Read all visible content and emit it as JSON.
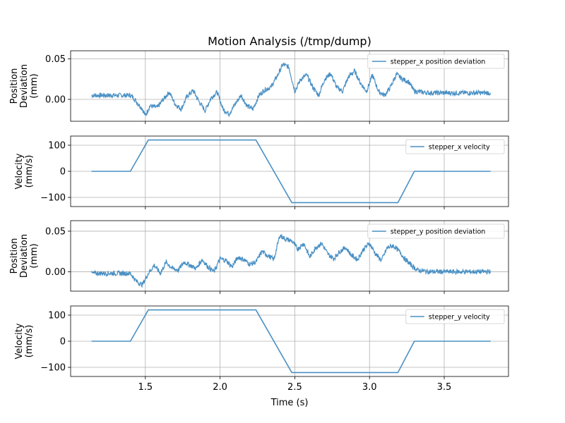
{
  "title": "Motion Analysis (/tmp/dump)",
  "xlabel": "Time (s)",
  "colors": {
    "series": "#4a90c4",
    "grid": "#b0b0b0",
    "axes": "#000000"
  },
  "chart_data": [
    {
      "type": "line",
      "ylabel": [
        "Position",
        "Deviation",
        "(mm)"
      ],
      "xlim": [
        1.0,
        3.93
      ],
      "ylim": [
        -0.027,
        0.06
      ],
      "yticks": [
        0.0,
        0.05
      ],
      "ytick_labels": [
        "0.00",
        "0.05"
      ],
      "xticks": [
        1.5,
        2.0,
        2.5,
        3.0,
        3.5
      ],
      "xtick_labels": [
        "",
        "",
        "",
        "",
        ""
      ],
      "grid": true,
      "legend_position": "top-right",
      "series": [
        {
          "name": "stepper_x position deviation",
          "color": "#4a90c4",
          "noise": 0.003,
          "x": [
            1.14,
            1.4,
            1.42,
            1.45,
            1.48,
            1.5,
            1.53,
            1.58,
            1.62,
            1.66,
            1.7,
            1.74,
            1.78,
            1.82,
            1.86,
            1.9,
            1.94,
            1.98,
            2.02,
            2.06,
            2.1,
            2.14,
            2.18,
            2.22,
            2.26,
            2.3,
            2.34,
            2.38,
            2.42,
            2.46,
            2.5,
            2.54,
            2.58,
            2.62,
            2.66,
            2.7,
            2.74,
            2.78,
            2.82,
            2.86,
            2.9,
            2.94,
            2.98,
            3.02,
            3.06,
            3.1,
            3.14,
            3.18,
            3.22,
            3.26,
            3.3,
            3.4,
            3.6,
            3.81
          ],
          "y": [
            0.005,
            0.005,
            0.002,
            -0.005,
            -0.012,
            -0.02,
            -0.008,
            -0.01,
            0.0,
            0.009,
            -0.006,
            -0.012,
            0.004,
            0.011,
            -0.003,
            -0.014,
            0.002,
            0.009,
            -0.012,
            -0.018,
            -0.006,
            0.005,
            -0.008,
            -0.012,
            0.005,
            0.012,
            0.015,
            0.028,
            0.043,
            0.04,
            0.01,
            0.025,
            0.03,
            0.015,
            0.005,
            0.025,
            0.032,
            0.015,
            0.01,
            0.028,
            0.035,
            0.02,
            0.01,
            0.03,
            0.01,
            0.005,
            0.015,
            0.031,
            0.025,
            0.022,
            0.01,
            0.008,
            0.008,
            0.008
          ]
        }
      ]
    },
    {
      "type": "line",
      "ylabel": [
        "Velocity",
        "(mm/s)"
      ],
      "xlim": [
        1.0,
        3.93
      ],
      "ylim": [
        -135,
        135
      ],
      "yticks": [
        -100,
        0,
        100
      ],
      "ytick_labels": [
        "−100",
        "0",
        "100"
      ],
      "xticks": [
        1.5,
        2.0,
        2.5,
        3.0,
        3.5
      ],
      "xtick_labels": [
        "",
        "",
        "",
        "",
        ""
      ],
      "grid": true,
      "legend_position": "top-right",
      "series": [
        {
          "name": "stepper_x velocity",
          "color": "#4a90c4",
          "noise": 0,
          "x": [
            1.14,
            1.4,
            1.52,
            2.24,
            2.48,
            3.19,
            3.3,
            3.81
          ],
          "y": [
            0,
            0,
            120,
            120,
            -120,
            -120,
            0,
            0
          ]
        }
      ]
    },
    {
      "type": "line",
      "ylabel": [
        "Position",
        "Deviation",
        "(mm)"
      ],
      "xlim": [
        1.0,
        3.93
      ],
      "ylim": [
        -0.024,
        0.063
      ],
      "yticks": [
        0.0,
        0.05
      ],
      "ytick_labels": [
        "0.00",
        "0.05"
      ],
      "xticks": [
        1.5,
        2.0,
        2.5,
        3.0,
        3.5
      ],
      "xtick_labels": [
        "",
        "",
        "",
        "",
        ""
      ],
      "grid": true,
      "legend_position": "top-right",
      "series": [
        {
          "name": "stepper_y position deviation",
          "color": "#4a90c4",
          "noise": 0.003,
          "x": [
            1.14,
            1.4,
            1.44,
            1.48,
            1.52,
            1.56,
            1.6,
            1.64,
            1.68,
            1.72,
            1.76,
            1.8,
            1.84,
            1.88,
            1.92,
            1.96,
            2.0,
            2.04,
            2.08,
            2.12,
            2.16,
            2.2,
            2.24,
            2.28,
            2.32,
            2.36,
            2.4,
            2.44,
            2.48,
            2.52,
            2.56,
            2.6,
            2.64,
            2.68,
            2.72,
            2.76,
            2.8,
            2.84,
            2.88,
            2.92,
            2.96,
            3.0,
            3.04,
            3.08,
            3.12,
            3.16,
            3.2,
            3.24,
            3.28,
            3.32,
            3.4,
            3.6,
            3.81
          ],
          "y": [
            -0.002,
            -0.002,
            -0.012,
            -0.016,
            -0.002,
            0.008,
            -0.002,
            0.012,
            0.004,
            0.002,
            0.012,
            0.008,
            0.004,
            0.015,
            0.006,
            0.0,
            0.016,
            0.014,
            0.006,
            0.018,
            0.015,
            0.009,
            0.012,
            0.025,
            0.02,
            0.015,
            0.045,
            0.04,
            0.038,
            0.028,
            0.035,
            0.018,
            0.03,
            0.035,
            0.022,
            0.016,
            0.025,
            0.03,
            0.02,
            0.015,
            0.028,
            0.035,
            0.022,
            0.014,
            0.03,
            0.032,
            0.025,
            0.015,
            0.008,
            0.002,
            0.0,
            0.0,
            0.0
          ]
        }
      ]
    },
    {
      "type": "line",
      "ylabel": [
        "Velocity",
        "(mm/s)"
      ],
      "xlim": [
        1.0,
        3.93
      ],
      "ylim": [
        -135,
        135
      ],
      "yticks": [
        -100,
        0,
        100
      ],
      "ytick_labels": [
        "−100",
        "0",
        "100"
      ],
      "xticks": [
        1.5,
        2.0,
        2.5,
        3.0,
        3.5
      ],
      "xtick_labels": [
        "1.5",
        "2.0",
        "2.5",
        "3.0",
        "3.5"
      ],
      "grid": true,
      "legend_position": "top-right",
      "series": [
        {
          "name": "stepper_y velocity",
          "color": "#4a90c4",
          "noise": 0,
          "x": [
            1.14,
            1.4,
            1.52,
            2.24,
            2.48,
            3.19,
            3.3,
            3.81
          ],
          "y": [
            0,
            0,
            120,
            120,
            -120,
            -120,
            0,
            0
          ]
        }
      ]
    }
  ]
}
